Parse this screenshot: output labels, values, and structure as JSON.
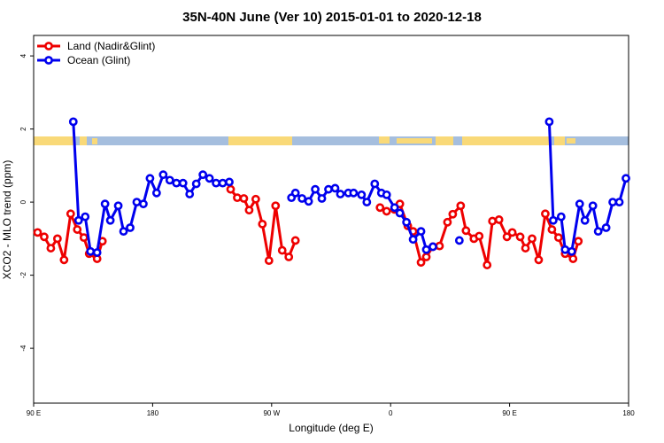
{
  "chart_data": {
    "type": "line",
    "title": "35N-40N June (Ver 10)   2015-01-01 to 2020-12-18",
    "x_label": "Longitude (deg E)",
    "y_label": "XCO2 - MLO trend (ppm)",
    "xlim": [
      90,
      540
    ],
    "ylim": [
      -5.5,
      4.56
    ],
    "xticks": [
      {
        "value": 90,
        "label": "90 E"
      },
      {
        "value": 180,
        "label": "180"
      },
      {
        "value": 270,
        "label": "90 W"
      },
      {
        "value": 360,
        "label": "0"
      },
      {
        "value": 450,
        "label": "90 E"
      },
      {
        "value": 540,
        "label": "180"
      }
    ],
    "yticks": [
      -4,
      -2,
      0,
      2,
      4
    ],
    "legend": "top-left",
    "series": [
      {
        "name": "Land (Nadir&Glint)",
        "color": "#ee0000",
        "x": [
          93,
          98,
          103,
          108,
          113,
          118,
          123,
          128,
          132,
          138,
          142,
          null,
          239,
          244,
          249,
          253,
          258,
          263,
          268,
          273,
          278,
          283,
          288,
          null,
          352,
          357,
          363,
          367,
          373,
          377,
          383,
          387,
          392,
          397,
          403,
          407,
          413,
          417,
          423,
          427,
          433,
          437,
          442,
          448,
          452,
          458,
          462,
          467,
          472,
          477,
          482,
          487,
          492,
          498,
          502
        ],
        "values": [
          -0.83,
          -0.95,
          -1.26,
          -1.0,
          -1.58,
          -0.32,
          -0.75,
          -0.97,
          -1.41,
          -1.55,
          -1.07,
          null,
          0.35,
          0.12,
          0.1,
          -0.22,
          0.08,
          -0.6,
          -1.6,
          -0.1,
          -1.32,
          -1.5,
          -1.05,
          null,
          -0.15,
          -0.25,
          -0.2,
          -0.05,
          -0.65,
          -0.8,
          -1.65,
          -1.5,
          -1.22,
          -1.2,
          -0.55,
          -0.33,
          -0.1,
          -0.78,
          -1.0,
          -0.93,
          -1.72,
          -0.52,
          -0.48,
          -0.95,
          -0.83,
          -0.95,
          -1.26,
          -1.0,
          -1.58,
          -0.32,
          -0.75,
          -0.97,
          -1.41,
          -1.55,
          -1.07
        ]
      },
      {
        "name": "Ocean (Glint)",
        "color": "#0000ee",
        "x": [
          120,
          124,
          129,
          133,
          138,
          144,
          148,
          154,
          158,
          163,
          168,
          173,
          178,
          183,
          188,
          193,
          198,
          203,
          208,
          213,
          218,
          223,
          228,
          233,
          238,
          null,
          285,
          288,
          293,
          298,
          303,
          308,
          313,
          318,
          322,
          328,
          332,
          338,
          342,
          348,
          353,
          357,
          363,
          367,
          372,
          377,
          383,
          387,
          392,
          null,
          412,
          null,
          480,
          483,
          489,
          492,
          497,
          503,
          507,
          513,
          517,
          523,
          528,
          533,
          538
        ],
        "values": [
          2.2,
          -0.5,
          -0.4,
          -1.35,
          -1.38,
          -0.05,
          -0.5,
          -0.1,
          -0.8,
          -0.7,
          0,
          -0.05,
          0.65,
          0.25,
          0.75,
          0.6,
          0.52,
          0.52,
          0.22,
          0.5,
          0.75,
          0.65,
          0.52,
          0.52,
          0.55,
          null,
          0.12,
          0.25,
          0.1,
          0.02,
          0.35,
          0.1,
          0.35,
          0.38,
          0.22,
          0.25,
          0.25,
          0.2,
          0,
          0.5,
          0.25,
          0.2,
          -0.15,
          -0.3,
          -0.55,
          -1.02,
          -0.8,
          -1.3,
          -1.22,
          null,
          -1.05,
          null,
          2.2,
          -0.5,
          -0.4,
          -1.3,
          -1.35,
          -0.05,
          -0.5,
          -0.1,
          -0.8,
          -0.7,
          0,
          0,
          0.65
        ]
      }
    ]
  }
}
